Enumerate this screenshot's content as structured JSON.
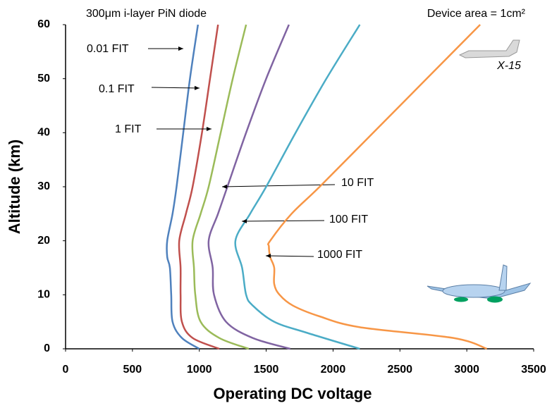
{
  "chart_data": {
    "type": "line",
    "subtitle_left": "300μm i-layer PiN diode",
    "subtitle_right": "Device area = 1cm²",
    "aircraft_label": "X-15",
    "x_label": "Operating DC voltage",
    "y_label": "Altitude (km)",
    "xlim": [
      0,
      3500
    ],
    "xticks": [
      0,
      500,
      1000,
      1500,
      2000,
      2500,
      3000,
      3500
    ],
    "ylim": [
      0,
      60
    ],
    "yticks": [
      0,
      10,
      20,
      30,
      40,
      50,
      60
    ],
    "grid": false,
    "series": [
      {
        "name": "0.01 FIT",
        "color": "#4f81bd",
        "x": [
          1000,
          870,
          800,
          790,
          780,
          760,
          760,
          800,
          830,
          880,
          930,
          990
        ],
        "values": [
          0,
          2,
          5,
          10,
          15,
          17,
          20,
          25,
          30,
          40,
          50,
          60
        ]
      },
      {
        "name": "0.1 FIT",
        "color": "#c0504d",
        "x": [
          1150,
          950,
          870,
          860,
          860,
          850,
          900,
          950,
          1020,
          1080,
          1140
        ],
        "values": [
          0,
          2,
          5,
          10,
          15,
          20,
          25,
          30,
          40,
          50,
          60
        ]
      },
      {
        "name": "1 FIT",
        "color": "#9bbb59",
        "x": [
          1370,
          1150,
          1010,
          970,
          960,
          950,
          1010,
          1070,
          1160,
          1250,
          1350
        ],
        "values": [
          0,
          2,
          5,
          10,
          15,
          20,
          25,
          30,
          40,
          50,
          60
        ]
      },
      {
        "name": "10 FIT",
        "color": "#8064a2",
        "x": [
          1680,
          1400,
          1200,
          1110,
          1100,
          1070,
          1140,
          1210,
          1350,
          1500,
          1670
        ],
        "values": [
          0,
          2,
          5,
          10,
          15,
          20,
          25,
          30,
          40,
          50,
          60
        ]
      },
      {
        "name": "100 FIT",
        "color": "#4bacc6",
        "x": [
          2200,
          1800,
          1560,
          1400,
          1350,
          1320,
          1270,
          1380,
          1500,
          1720,
          1950,
          2200
        ],
        "values": [
          0,
          3,
          5,
          8,
          10,
          15,
          20,
          25,
          30,
          40,
          50,
          60
        ]
      },
      {
        "name": "1000 FIT",
        "color": "#f79646",
        "x": [
          3150,
          2900,
          2200,
          1900,
          1700,
          1600,
          1560,
          1560,
          1530,
          1520,
          1530,
          1690,
          1900,
          2300,
          2700,
          3100
        ],
        "values": [
          0,
          2,
          4,
          6,
          8,
          10,
          12,
          15,
          17,
          19,
          20,
          25,
          30,
          40,
          50,
          60
        ]
      }
    ]
  }
}
